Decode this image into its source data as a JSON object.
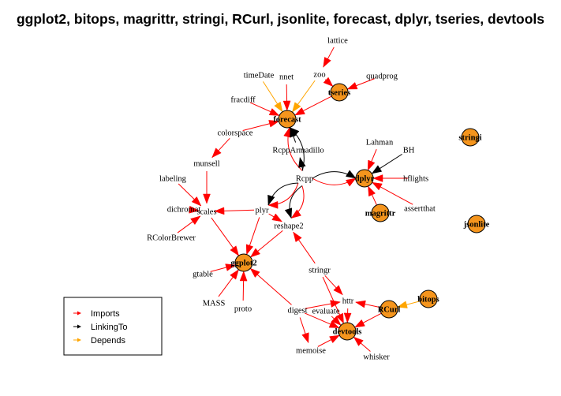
{
  "title": "ggplot2, bitops, magrittr, stringi, RCurl, jsonlite, forecast, dplyr, tseries, devtools",
  "colors": {
    "Imports": "#ff0000",
    "LinkingTo": "#000000",
    "Depends": "#ffa500",
    "node_fill": "#f5951d"
  },
  "legend": [
    {
      "label": "Imports",
      "type": "Imports"
    },
    {
      "label": "LinkingTo",
      "type": "LinkingTo"
    },
    {
      "label": "Depends",
      "type": "Depends"
    }
  ],
  "nodes": [
    {
      "id": "forecast",
      "label": "forecast",
      "main": true
    },
    {
      "id": "tseries",
      "label": "tseries",
      "main": true
    },
    {
      "id": "dplyr",
      "label": "dplyr",
      "main": true
    },
    {
      "id": "magrittr",
      "label": "magrittr",
      "main": true
    },
    {
      "id": "stringi",
      "label": "stringi",
      "main": true
    },
    {
      "id": "jsonlite",
      "label": "jsonlite",
      "main": true
    },
    {
      "id": "ggplot2",
      "label": "ggplot2",
      "main": true
    },
    {
      "id": "devtools",
      "label": "devtools",
      "main": true
    },
    {
      "id": "RCurl",
      "label": "RCurl",
      "main": true
    },
    {
      "id": "bitops",
      "label": "bitops",
      "main": true
    },
    {
      "id": "lattice",
      "label": "lattice",
      "main": false
    },
    {
      "id": "zoo",
      "label": "zoo",
      "main": false
    },
    {
      "id": "quadprog",
      "label": "quadprog",
      "main": false
    },
    {
      "id": "timeDate",
      "label": "timeDate",
      "main": false
    },
    {
      "id": "nnet",
      "label": "nnet",
      "main": false
    },
    {
      "id": "fracdiff",
      "label": "fracdiff",
      "main": false
    },
    {
      "id": "colorspace",
      "label": "colorspace",
      "main": false
    },
    {
      "id": "RcppArmadillo",
      "label": "RcppArmadillo",
      "main": false
    },
    {
      "id": "munsell",
      "label": "munsell",
      "main": false
    },
    {
      "id": "Lahman",
      "label": "Lahman",
      "main": false
    },
    {
      "id": "BH",
      "label": "BH",
      "main": false
    },
    {
      "id": "labeling",
      "label": "labeling",
      "main": false
    },
    {
      "id": "Rcpp",
      "label": "Rcpp",
      "main": false
    },
    {
      "id": "hflights",
      "label": "hflights",
      "main": false
    },
    {
      "id": "dichromat",
      "label": "dichromat",
      "main": false
    },
    {
      "id": "scales",
      "label": "scales",
      "main": false
    },
    {
      "id": "plyr",
      "label": "plyr",
      "main": false
    },
    {
      "id": "assertthat",
      "label": "assertthat",
      "main": false
    },
    {
      "id": "reshape2",
      "label": "reshape2",
      "main": false
    },
    {
      "id": "RColorBrewer",
      "label": "RColorBrewer",
      "main": false
    },
    {
      "id": "gtable",
      "label": "gtable",
      "main": false
    },
    {
      "id": "stringr",
      "label": "stringr",
      "main": false
    },
    {
      "id": "MASS",
      "label": "MASS",
      "main": false
    },
    {
      "id": "proto",
      "label": "proto",
      "main": false
    },
    {
      "id": "httr",
      "label": "httr",
      "main": false
    },
    {
      "id": "digest",
      "label": "digest",
      "main": false
    },
    {
      "id": "evaluate",
      "label": "evaluate",
      "main": false
    },
    {
      "id": "memoise",
      "label": "memoise",
      "main": false
    },
    {
      "id": "whisker",
      "label": "whisker",
      "main": false
    }
  ],
  "edges": [
    {
      "from": "zoo",
      "to": "tseries",
      "type": "Imports"
    },
    {
      "from": "quadprog",
      "to": "tseries",
      "type": "Imports"
    },
    {
      "from": "lattice",
      "to": "zoo",
      "type": "Imports"
    },
    {
      "from": "tseries",
      "to": "forecast",
      "type": "Imports"
    },
    {
      "from": "timeDate",
      "to": "forecast",
      "type": "Depends"
    },
    {
      "from": "nnet",
      "to": "forecast",
      "type": "Imports"
    },
    {
      "from": "fracdiff",
      "to": "forecast",
      "type": "Imports"
    },
    {
      "from": "colorspace",
      "to": "forecast",
      "type": "Imports"
    },
    {
      "from": "zoo",
      "to": "forecast",
      "type": "Depends"
    },
    {
      "from": "Rcpp",
      "to": "forecast",
      "type": "Imports"
    },
    {
      "from": "Rcpp",
      "to": "forecast",
      "type": "LinkingTo"
    },
    {
      "from": "RcppArmadillo",
      "to": "forecast",
      "type": "LinkingTo"
    },
    {
      "from": "Rcpp",
      "to": "RcppArmadillo",
      "type": "LinkingTo"
    },
    {
      "from": "colorspace",
      "to": "munsell",
      "type": "Imports"
    },
    {
      "from": "munsell",
      "to": "scales",
      "type": "Imports"
    },
    {
      "from": "labeling",
      "to": "scales",
      "type": "Imports"
    },
    {
      "from": "dichromat",
      "to": "scales",
      "type": "Imports"
    },
    {
      "from": "RColorBrewer",
      "to": "scales",
      "type": "Imports"
    },
    {
      "from": "plyr",
      "to": "scales",
      "type": "Imports"
    },
    {
      "from": "Rcpp",
      "to": "dplyr",
      "type": "LinkingTo"
    },
    {
      "from": "Rcpp",
      "to": "dplyr",
      "type": "Imports"
    },
    {
      "from": "Lahman",
      "to": "dplyr",
      "type": "Imports"
    },
    {
      "from": "BH",
      "to": "dplyr",
      "type": "LinkingTo"
    },
    {
      "from": "hflights",
      "to": "dplyr",
      "type": "Imports"
    },
    {
      "from": "magrittr",
      "to": "dplyr",
      "type": "Imports"
    },
    {
      "from": "assertthat",
      "to": "dplyr",
      "type": "Imports"
    },
    {
      "from": "Rcpp",
      "to": "plyr",
      "type": "Imports"
    },
    {
      "from": "Rcpp",
      "to": "plyr",
      "type": "LinkingTo"
    },
    {
      "from": "Rcpp",
      "to": "reshape2",
      "type": "Imports"
    },
    {
      "from": "Rcpp",
      "to": "reshape2",
      "type": "LinkingTo"
    },
    {
      "from": "plyr",
      "to": "reshape2",
      "type": "Imports"
    },
    {
      "from": "stringr",
      "to": "reshape2",
      "type": "Imports"
    },
    {
      "from": "scales",
      "to": "ggplot2",
      "type": "Imports"
    },
    {
      "from": "plyr",
      "to": "ggplot2",
      "type": "Imports"
    },
    {
      "from": "reshape2",
      "to": "ggplot2",
      "type": "Imports"
    },
    {
      "from": "gtable",
      "to": "ggplot2",
      "type": "Imports"
    },
    {
      "from": "MASS",
      "to": "ggplot2",
      "type": "Imports"
    },
    {
      "from": "proto",
      "to": "ggplot2",
      "type": "Imports"
    },
    {
      "from": "digest",
      "to": "ggplot2",
      "type": "Imports"
    },
    {
      "from": "stringr",
      "to": "httr",
      "type": "Imports"
    },
    {
      "from": "stringr",
      "to": "devtools",
      "type": "Imports"
    },
    {
      "from": "digest",
      "to": "httr",
      "type": "Imports"
    },
    {
      "from": "digest",
      "to": "devtools",
      "type": "Imports"
    },
    {
      "from": "digest",
      "to": "memoise",
      "type": "Imports"
    },
    {
      "from": "RCurl",
      "to": "httr",
      "type": "Imports"
    },
    {
      "from": "RCurl",
      "to": "devtools",
      "type": "Imports"
    },
    {
      "from": "bitops",
      "to": "RCurl",
      "type": "Depends"
    },
    {
      "from": "httr",
      "to": "devtools",
      "type": "Imports"
    },
    {
      "from": "evaluate",
      "to": "devtools",
      "type": "Imports"
    },
    {
      "from": "memoise",
      "to": "devtools",
      "type": "Imports"
    },
    {
      "from": "whisker",
      "to": "devtools",
      "type": "Imports"
    }
  ]
}
